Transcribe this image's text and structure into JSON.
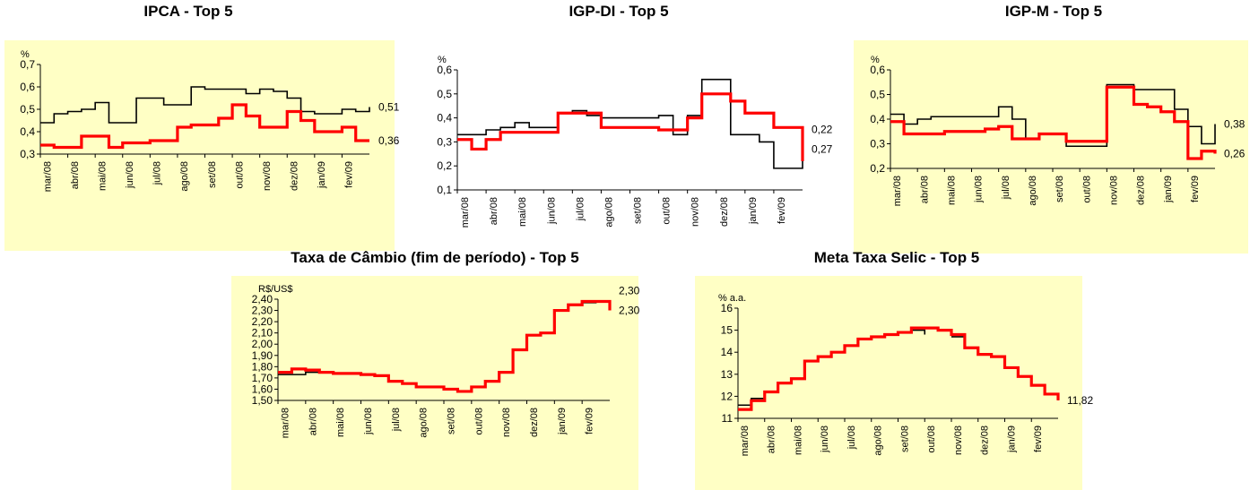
{
  "chart_data": [
    {
      "type": "line",
      "title": "IPCA - Top 5",
      "y_label": "%",
      "x": [
        0,
        0.5,
        1,
        1.5,
        2,
        2.5,
        3,
        3.5,
        4,
        4.5,
        5,
        5.5,
        6,
        6.5,
        7,
        7.5,
        8,
        8.5,
        9,
        9.5,
        10,
        10.5,
        11,
        11.5,
        12
      ],
      "xlim": [
        0,
        12
      ],
      "xticks": [
        {
          "value": 0,
          "label": "mar/08"
        },
        {
          "value": 1,
          "label": "abr/08"
        },
        {
          "value": 2,
          "label": "mai/08"
        },
        {
          "value": 3,
          "label": "jun/08"
        },
        {
          "value": 4,
          "label": "jul/08"
        },
        {
          "value": 5,
          "label": "ago/08"
        },
        {
          "value": 6,
          "label": "set/08"
        },
        {
          "value": 7,
          "label": "out/08"
        },
        {
          "value": 8,
          "label": "nov/08"
        },
        {
          "value": 9,
          "label": "dez/08"
        },
        {
          "value": 10,
          "label": "jan/09"
        },
        {
          "value": 11,
          "label": "fev/09"
        }
      ],
      "ylim": [
        0.3,
        0.7
      ],
      "yticks": [
        {
          "value": 0.3,
          "label": "0,3"
        },
        {
          "value": 0.4,
          "label": "0,4"
        },
        {
          "value": 0.5,
          "label": "0,5"
        },
        {
          "value": 0.6,
          "label": "0,6"
        },
        {
          "value": 0.7,
          "label": "0,7"
        }
      ],
      "series": [
        {
          "color": "#000000",
          "values": [
            0.44,
            0.48,
            0.49,
            0.5,
            0.53,
            0.44,
            0.44,
            0.55,
            0.55,
            0.52,
            0.52,
            0.6,
            0.59,
            0.59,
            0.59,
            0.57,
            0.59,
            0.58,
            0.55,
            0.49,
            0.48,
            0.48,
            0.5,
            0.49,
            0.51
          ]
        },
        {
          "color": "#ff0000",
          "values": [
            0.34,
            0.33,
            0.33,
            0.38,
            0.38,
            0.33,
            0.35,
            0.35,
            0.36,
            0.36,
            0.42,
            0.43,
            0.43,
            0.46,
            0.52,
            0.47,
            0.42,
            0.42,
            0.49,
            0.45,
            0.4,
            0.4,
            0.42,
            0.36,
            0.36
          ]
        }
      ],
      "annotations": [
        {
          "text": "0,51",
          "value": 0.51
        },
        {
          "text": "0,36",
          "value": 0.36
        }
      ]
    },
    {
      "type": "line",
      "title": "IGP-DI - Top 5",
      "y_label": "%",
      "x": [
        0,
        0.5,
        1,
        1.5,
        2,
        2.5,
        3,
        3.5,
        4,
        4.5,
        5,
        5.5,
        6,
        6.5,
        7,
        7.5,
        8,
        8.5,
        9,
        9.5,
        10,
        10.5,
        11,
        11.5,
        12
      ],
      "xlim": [
        0,
        12
      ],
      "xticks": [
        {
          "value": 0,
          "label": "mar/08"
        },
        {
          "value": 1,
          "label": "abr/08"
        },
        {
          "value": 2,
          "label": "mai/08"
        },
        {
          "value": 3,
          "label": "jun/08"
        },
        {
          "value": 4,
          "label": "jul/08"
        },
        {
          "value": 5,
          "label": "ago/08"
        },
        {
          "value": 6,
          "label": "set/08"
        },
        {
          "value": 7,
          "label": "out/08"
        },
        {
          "value": 8,
          "label": "nov/08"
        },
        {
          "value": 9,
          "label": "dez/08"
        },
        {
          "value": 10,
          "label": "jan/09"
        },
        {
          "value": 11,
          "label": "fev/09"
        }
      ],
      "ylim": [
        0.1,
        0.6
      ],
      "yticks": [
        {
          "value": 0.1,
          "label": "0,1"
        },
        {
          "value": 0.2,
          "label": "0,2"
        },
        {
          "value": 0.3,
          "label": "0,3"
        },
        {
          "value": 0.4,
          "label": "0,4"
        },
        {
          "value": 0.5,
          "label": "0,5"
        },
        {
          "value": 0.6,
          "label": "0,6"
        }
      ],
      "series": [
        {
          "color": "#000000",
          "values": [
            0.33,
            0.33,
            0.35,
            0.36,
            0.38,
            0.36,
            0.36,
            0.42,
            0.43,
            0.41,
            0.4,
            0.4,
            0.4,
            0.4,
            0.41,
            0.33,
            0.41,
            0.56,
            0.56,
            0.33,
            0.33,
            0.3,
            0.19,
            0.19,
            0.27
          ]
        },
        {
          "color": "#ff0000",
          "values": [
            0.31,
            0.27,
            0.31,
            0.34,
            0.34,
            0.34,
            0.34,
            0.42,
            0.42,
            0.42,
            0.36,
            0.36,
            0.36,
            0.36,
            0.35,
            0.35,
            0.4,
            0.5,
            0.5,
            0.47,
            0.42,
            0.42,
            0.36,
            0.36,
            0.22
          ]
        }
      ],
      "annotations": [
        {
          "text": "0,27",
          "value": 0.27
        },
        {
          "text": "0,22",
          "value": 0.22
        }
      ]
    },
    {
      "type": "line",
      "title": "IGP-M - Top 5",
      "y_label": "%",
      "x": [
        0,
        0.5,
        1,
        1.5,
        2,
        2.5,
        3,
        3.5,
        4,
        4.5,
        5,
        5.5,
        6,
        6.5,
        7,
        7.5,
        8,
        8.5,
        9,
        9.5,
        10,
        10.5,
        11,
        11.5,
        12
      ],
      "xlim": [
        0,
        12
      ],
      "xticks": [
        {
          "value": 0,
          "label": "mar/08"
        },
        {
          "value": 1,
          "label": "abr/08"
        },
        {
          "value": 2,
          "label": "mai/08"
        },
        {
          "value": 3,
          "label": "jun/08"
        },
        {
          "value": 4,
          "label": "jul/08"
        },
        {
          "value": 5,
          "label": "ago/08"
        },
        {
          "value": 6,
          "label": "set/08"
        },
        {
          "value": 7,
          "label": "out/08"
        },
        {
          "value": 8,
          "label": "nov/08"
        },
        {
          "value": 9,
          "label": "dez/08"
        },
        {
          "value": 10,
          "label": "jan/09"
        },
        {
          "value": 11,
          "label": "fev/09"
        }
      ],
      "ylim": [
        0.2,
        0.6
      ],
      "yticks": [
        {
          "value": 0.2,
          "label": "0,2"
        },
        {
          "value": 0.3,
          "label": "0,3"
        },
        {
          "value": 0.4,
          "label": "0,4"
        },
        {
          "value": 0.5,
          "label": "0,5"
        },
        {
          "value": 0.6,
          "label": "0,6"
        }
      ],
      "series": [
        {
          "color": "#000000",
          "values": [
            0.42,
            0.38,
            0.4,
            0.41,
            0.41,
            0.41,
            0.41,
            0.41,
            0.45,
            0.4,
            0.32,
            0.34,
            0.34,
            0.29,
            0.29,
            0.29,
            0.54,
            0.54,
            0.52,
            0.52,
            0.52,
            0.44,
            0.37,
            0.3,
            0.38
          ]
        },
        {
          "color": "#ff0000",
          "values": [
            0.39,
            0.34,
            0.34,
            0.34,
            0.35,
            0.35,
            0.35,
            0.36,
            0.37,
            0.32,
            0.32,
            0.34,
            0.34,
            0.31,
            0.31,
            0.31,
            0.53,
            0.53,
            0.46,
            0.45,
            0.43,
            0.39,
            0.24,
            0.27,
            0.26
          ]
        }
      ],
      "annotations": [
        {
          "text": "0,38",
          "value": 0.38
        },
        {
          "text": "0,26",
          "value": 0.26
        }
      ]
    },
    {
      "type": "line",
      "title": "Taxa de Câmbio (fim de período) - Top 5",
      "y_label": "R$/US$",
      "x": [
        0,
        0.5,
        1,
        1.5,
        2,
        2.5,
        3,
        3.5,
        4,
        4.5,
        5,
        5.5,
        6,
        6.5,
        7,
        7.5,
        8,
        8.5,
        9,
        9.5,
        10,
        10.5,
        11,
        11.5,
        12
      ],
      "xlim": [
        0,
        12
      ],
      "xticks": [
        {
          "value": 0,
          "label": "mar/08"
        },
        {
          "value": 1,
          "label": "abr/08"
        },
        {
          "value": 2,
          "label": "mai/08"
        },
        {
          "value": 3,
          "label": "jun/08"
        },
        {
          "value": 4,
          "label": "jul/08"
        },
        {
          "value": 5,
          "label": "ago/08"
        },
        {
          "value": 6,
          "label": "set/08"
        },
        {
          "value": 7,
          "label": "out/08"
        },
        {
          "value": 8,
          "label": "nov/08"
        },
        {
          "value": 9,
          "label": "dez/08"
        },
        {
          "value": 10,
          "label": "jan/09"
        },
        {
          "value": 11,
          "label": "fev/09"
        }
      ],
      "ylim": [
        1.5,
        2.4
      ],
      "yticks": [
        {
          "value": 1.5,
          "label": "1,50"
        },
        {
          "value": 1.6,
          "label": "1,60"
        },
        {
          "value": 1.7,
          "label": "1,70"
        },
        {
          "value": 1.8,
          "label": "1,80"
        },
        {
          "value": 1.9,
          "label": "1,90"
        },
        {
          "value": 2.0,
          "label": "2,00"
        },
        {
          "value": 2.1,
          "label": "2,10"
        },
        {
          "value": 2.2,
          "label": "2,20"
        },
        {
          "value": 2.3,
          "label": "2,30"
        },
        {
          "value": 2.4,
          "label": "2,40"
        }
      ],
      "series": [
        {
          "color": "#000000",
          "values": [
            1.73,
            1.73,
            1.75,
            1.75,
            1.74,
            1.74,
            1.73,
            1.72,
            1.67,
            1.65,
            1.62,
            1.62,
            1.6,
            1.58,
            1.62,
            1.67,
            1.75,
            1.95,
            2.08,
            2.1,
            2.3,
            2.35,
            2.37,
            2.38,
            2.3
          ]
        },
        {
          "color": "#ff0000",
          "values": [
            1.75,
            1.78,
            1.77,
            1.75,
            1.74,
            1.74,
            1.73,
            1.72,
            1.67,
            1.65,
            1.62,
            1.62,
            1.6,
            1.58,
            1.62,
            1.67,
            1.75,
            1.95,
            2.08,
            2.1,
            2.3,
            2.35,
            2.38,
            2.38,
            2.3
          ]
        }
      ],
      "annotations": [
        {
          "text": "2,30",
          "value": 2.3
        },
        {
          "text": "2,30",
          "value": 2.3
        }
      ]
    },
    {
      "type": "line",
      "title": "Meta Taxa Selic - Top 5",
      "y_label": "% a.a.",
      "x": [
        0,
        0.5,
        1,
        1.5,
        2,
        2.5,
        3,
        3.5,
        4,
        4.5,
        5,
        5.5,
        6,
        6.5,
        7,
        7.5,
        8,
        8.5,
        9,
        9.5,
        10,
        10.5,
        11,
        11.5,
        12
      ],
      "xlim": [
        0,
        12
      ],
      "xticks": [
        {
          "value": 0,
          "label": "mar/08"
        },
        {
          "value": 1,
          "label": "abr/08"
        },
        {
          "value": 2,
          "label": "mai/08"
        },
        {
          "value": 3,
          "label": "jun/08"
        },
        {
          "value": 4,
          "label": "jul/08"
        },
        {
          "value": 5,
          "label": "ago/08"
        },
        {
          "value": 6,
          "label": "set/08"
        },
        {
          "value": 7,
          "label": "out/08"
        },
        {
          "value": 8,
          "label": "nov/08"
        },
        {
          "value": 9,
          "label": "dez/08"
        },
        {
          "value": 10,
          "label": "jan/09"
        },
        {
          "value": 11,
          "label": "fev/09"
        }
      ],
      "ylim": [
        11,
        16
      ],
      "yticks": [
        11,
        12,
        13,
        14,
        15,
        16
      ],
      "series": [
        {
          "color": "#000000",
          "values": [
            11.6,
            11.9,
            12.2,
            12.6,
            12.8,
            13.6,
            13.8,
            14.0,
            14.3,
            14.6,
            14.7,
            14.8,
            14.9,
            15.0,
            14.8,
            null,
            14.7,
            14.2,
            13.9,
            13.8,
            13.3,
            12.9,
            12.5,
            12.1,
            11.82
          ]
        },
        {
          "color": "#ff0000",
          "values": [
            11.4,
            11.8,
            12.2,
            12.6,
            12.8,
            13.6,
            13.8,
            14.0,
            14.3,
            14.6,
            14.7,
            14.8,
            14.9,
            15.1,
            15.1,
            15.0,
            14.8,
            14.2,
            13.9,
            13.8,
            13.3,
            12.9,
            12.5,
            12.1,
            11.82
          ]
        }
      ],
      "annotations": [
        {
          "text": "11,82",
          "value": 11.82
        }
      ]
    }
  ]
}
